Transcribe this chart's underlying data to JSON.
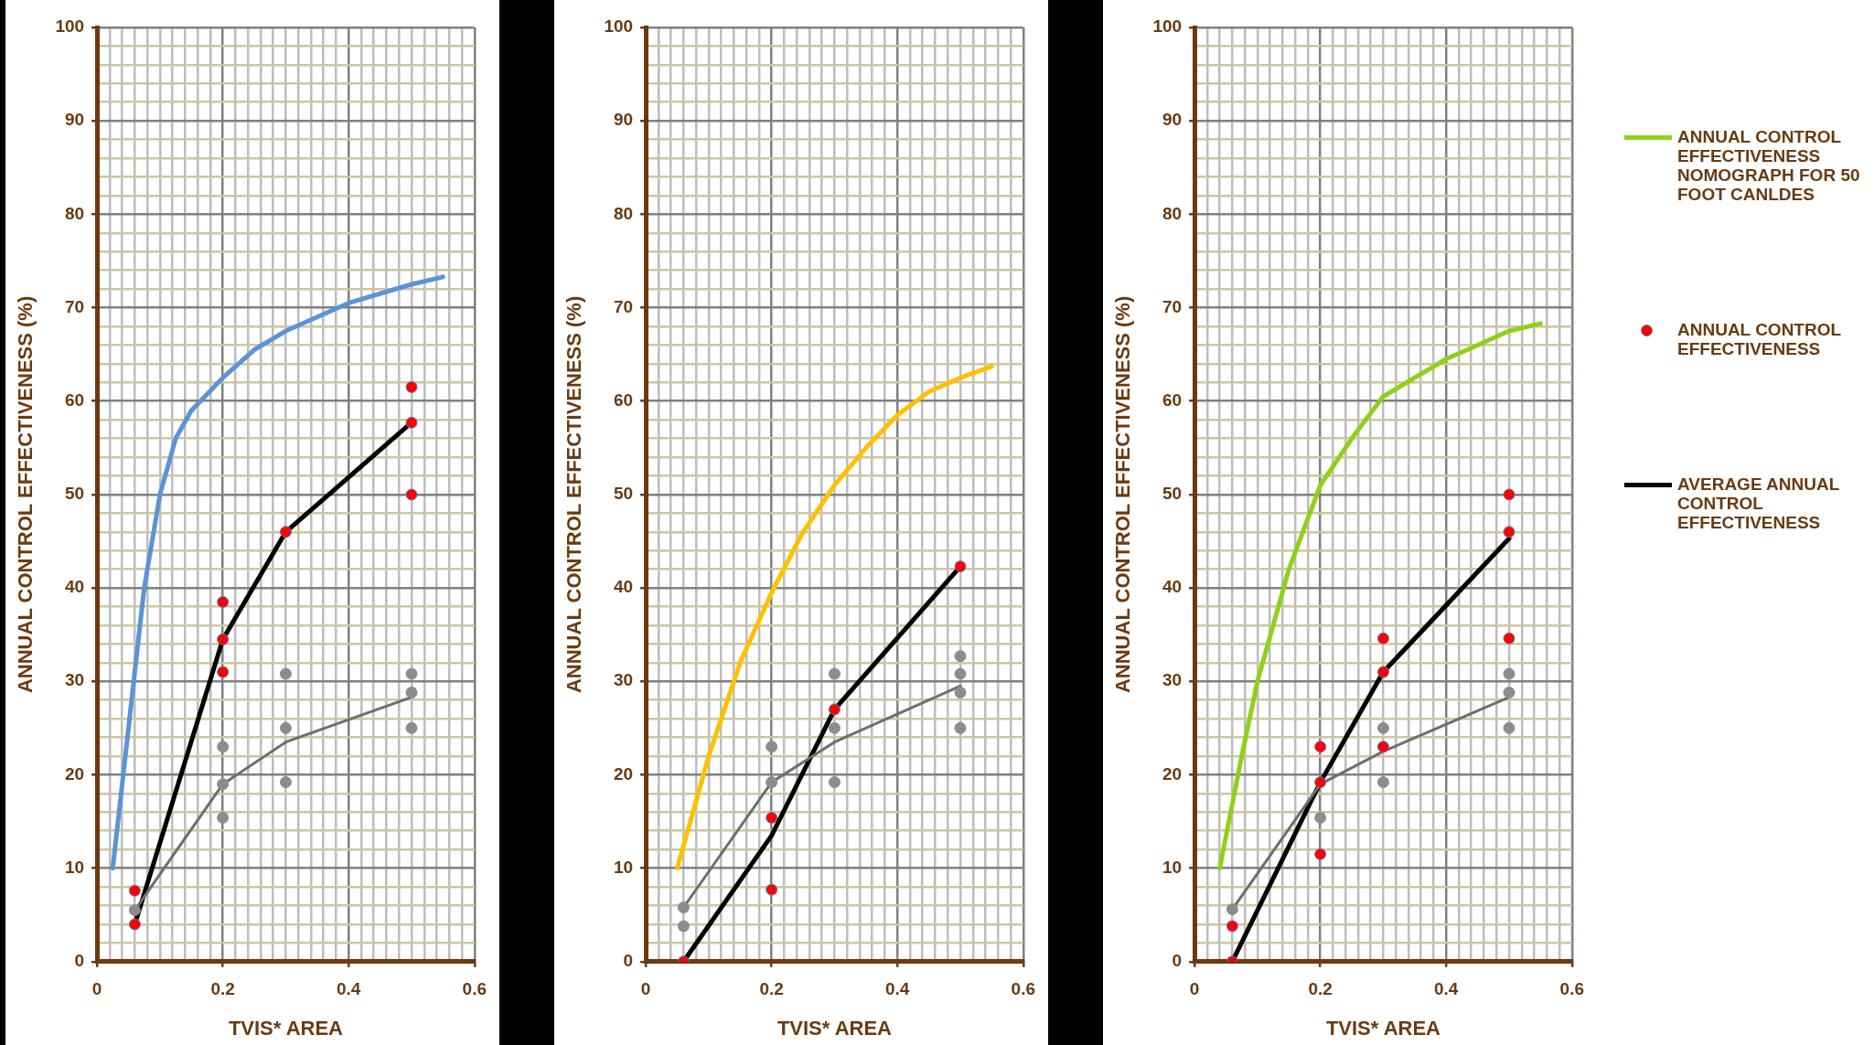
{
  "chart_data": [
    {
      "type": "line",
      "xlabel": "TVIS* AREA",
      "ylabel": "ANNUAL CONTROL EFFECTIVENESS (%)",
      "xlim": [
        0,
        0.6
      ],
      "ylim": [
        0,
        100
      ],
      "xticks": [
        0,
        {
          "value": 0.02,
          "label": null
        },
        {
          "value": 0.04,
          "label": null
        },
        {
          "value": 0.06,
          "label": null
        },
        {
          "value": 0.08,
          "label": null
        },
        {
          "value": 0.1,
          "label": null
        },
        {
          "value": 0.12,
          "label": null
        },
        {
          "value": 0.14,
          "label": null
        },
        {
          "value": 0.16,
          "label": null
        },
        {
          "value": 0.18,
          "label": null
        },
        0.2,
        {
          "value": 0.22,
          "label": null
        },
        {
          "value": 0.24,
          "label": null
        },
        {
          "value": 0.26,
          "label": null
        },
        {
          "value": 0.28,
          "label": null
        },
        {
          "value": 0.3,
          "label": null
        },
        {
          "value": 0.32,
          "label": null
        },
        {
          "value": 0.34,
          "label": null
        },
        {
          "value": 0.36,
          "label": null
        },
        {
          "value": 0.38,
          "label": null
        },
        0.4,
        {
          "value": 0.42,
          "label": null
        },
        {
          "value": 0.44,
          "label": null
        },
        {
          "value": 0.46,
          "label": null
        },
        {
          "value": 0.48,
          "label": null
        },
        {
          "value": 0.5,
          "label": null
        },
        {
          "value": 0.52,
          "label": null
        },
        {
          "value": 0.54,
          "label": null
        },
        {
          "value": 0.56,
          "label": null
        },
        {
          "value": 0.58,
          "label": null
        },
        0.6
      ],
      "yticks": [
        0,
        {
          "value": 2,
          "label": null
        },
        {
          "value": 4,
          "label": null
        },
        {
          "value": 6,
          "label": null
        },
        {
          "value": 8,
          "label": null
        },
        10,
        {
          "value": 12,
          "label": null
        },
        {
          "value": 14,
          "label": null
        },
        {
          "value": 16,
          "label": null
        },
        {
          "value": 18,
          "label": null
        },
        20,
        {
          "value": 22,
          "label": null
        },
        {
          "value": 24,
          "label": null
        },
        {
          "value": 26,
          "label": null
        },
        {
          "value": 28,
          "label": null
        },
        30,
        {
          "value": 32,
          "label": null
        },
        {
          "value": 34,
          "label": null
        },
        {
          "value": 36,
          "label": null
        },
        {
          "value": 38,
          "label": null
        },
        40,
        {
          "value": 42,
          "label": null
        },
        {
          "value": 44,
          "label": null
        },
        {
          "value": 46,
          "label": null
        },
        {
          "value": 48,
          "label": null
        },
        50,
        {
          "value": 52,
          "label": null
        },
        {
          "value": 54,
          "label": null
        },
        {
          "value": 56,
          "label": null
        },
        {
          "value": 58,
          "label": null
        },
        60,
        {
          "value": 62,
          "label": null
        },
        {
          "value": 64,
          "label": null
        },
        {
          "value": 66,
          "label": null
        },
        {
          "value": 68,
          "label": null
        },
        70,
        {
          "value": 72,
          "label": null
        },
        {
          "value": 74,
          "label": null
        },
        {
          "value": 76,
          "label": null
        },
        {
          "value": 78,
          "label": null
        },
        80,
        {
          "value": 82,
          "label": null
        },
        {
          "value": 84,
          "label": null
        },
        {
          "value": 86,
          "label": null
        },
        {
          "value": 88,
          "label": null
        },
        90,
        {
          "value": 92,
          "label": null
        },
        {
          "value": 94,
          "label": null
        },
        {
          "value": 96,
          "label": null
        },
        {
          "value": 98,
          "label": null
        },
        100
      ],
      "grid": true,
      "legend": false,
      "series": [
        {
          "type": "line",
          "color": "#5b93d6",
          "marker": "none",
          "x": [
            0.025,
            0.05,
            0.075,
            0.1,
            0.125,
            0.15,
            0.2,
            0.25,
            0.3,
            0.4,
            0.5,
            0.55
          ],
          "values": [
            10,
            25,
            40,
            50,
            56,
            59,
            62.5,
            65.5,
            67.5,
            70.5,
            72.5,
            73.3
          ]
        },
        {
          "type": "line",
          "color": "#6e6e6e",
          "marker": "none",
          "x": [
            0.06,
            0.2,
            0.3,
            0.5
          ],
          "values": [
            5.5,
            19,
            23.5,
            28.3
          ]
        },
        {
          "type": "scatter",
          "color": "#8c8c8c",
          "marker": "circle",
          "x": [
            0.06,
            0.2,
            0.2,
            0.2,
            0.3,
            0.3,
            0.3,
            0.5,
            0.5,
            0.5
          ],
          "values": [
            5.5,
            23,
            19,
            15.4,
            30.8,
            25,
            19.2,
            30.8,
            28.8,
            25
          ]
        },
        {
          "type": "line",
          "color": "#000000",
          "marker": "none",
          "x": [
            0.06,
            0.2,
            0.3,
            0.5
          ],
          "values": [
            4,
            34.5,
            46,
            57.7
          ]
        },
        {
          "type": "scatter",
          "color": "#ff0000",
          "marker": "circle",
          "x": [
            0.06,
            0.06,
            0.2,
            0.2,
            0.2,
            0.3,
            0.5,
            0.5,
            0.5
          ],
          "values": [
            7.6,
            4,
            38.5,
            34.5,
            31,
            46,
            61.5,
            57.7,
            50
          ]
        }
      ]
    },
    {
      "type": "line",
      "xlabel": "TVIS* AREA",
      "ylabel": "ANNUAL CONTROL EFFECTIVENESS (%)",
      "xlim": [
        0,
        0.6
      ],
      "ylim": [
        0,
        100
      ],
      "xticks": [
        0,
        {
          "value": 0.02,
          "label": null
        },
        {
          "value": 0.04,
          "label": null
        },
        {
          "value": 0.06,
          "label": null
        },
        {
          "value": 0.08,
          "label": null
        },
        {
          "value": 0.1,
          "label": null
        },
        {
          "value": 0.12,
          "label": null
        },
        {
          "value": 0.14,
          "label": null
        },
        {
          "value": 0.16,
          "label": null
        },
        {
          "value": 0.18,
          "label": null
        },
        0.2,
        {
          "value": 0.22,
          "label": null
        },
        {
          "value": 0.24,
          "label": null
        },
        {
          "value": 0.26,
          "label": null
        },
        {
          "value": 0.28,
          "label": null
        },
        {
          "value": 0.3,
          "label": null
        },
        {
          "value": 0.32,
          "label": null
        },
        {
          "value": 0.34,
          "label": null
        },
        {
          "value": 0.36,
          "label": null
        },
        {
          "value": 0.38,
          "label": null
        },
        0.4,
        {
          "value": 0.42,
          "label": null
        },
        {
          "value": 0.44,
          "label": null
        },
        {
          "value": 0.46,
          "label": null
        },
        {
          "value": 0.48,
          "label": null
        },
        {
          "value": 0.5,
          "label": null
        },
        {
          "value": 0.52,
          "label": null
        },
        {
          "value": 0.54,
          "label": null
        },
        {
          "value": 0.56,
          "label": null
        },
        {
          "value": 0.58,
          "label": null
        },
        0.6
      ],
      "yticks": [
        0,
        {
          "value": 2,
          "label": null
        },
        {
          "value": 4,
          "label": null
        },
        {
          "value": 6,
          "label": null
        },
        {
          "value": 8,
          "label": null
        },
        10,
        {
          "value": 12,
          "label": null
        },
        {
          "value": 14,
          "label": null
        },
        {
          "value": 16,
          "label": null
        },
        {
          "value": 18,
          "label": null
        },
        20,
        {
          "value": 22,
          "label": null
        },
        {
          "value": 24,
          "label": null
        },
        {
          "value": 26,
          "label": null
        },
        {
          "value": 28,
          "label": null
        },
        30,
        {
          "value": 32,
          "label": null
        },
        {
          "value": 34,
          "label": null
        },
        {
          "value": 36,
          "label": null
        },
        {
          "value": 38,
          "label": null
        },
        40,
        {
          "value": 42,
          "label": null
        },
        {
          "value": 44,
          "label": null
        },
        {
          "value": 46,
          "label": null
        },
        {
          "value": 48,
          "label": null
        },
        50,
        {
          "value": 52,
          "label": null
        },
        {
          "value": 54,
          "label": null
        },
        {
          "value": 56,
          "label": null
        },
        {
          "value": 58,
          "label": null
        },
        60,
        {
          "value": 62,
          "label": null
        },
        {
          "value": 64,
          "label": null
        },
        {
          "value": 66,
          "label": null
        },
        {
          "value": 68,
          "label": null
        },
        70,
        {
          "value": 72,
          "label": null
        },
        {
          "value": 74,
          "label": null
        },
        {
          "value": 76,
          "label": null
        },
        {
          "value": 78,
          "label": null
        },
        80,
        {
          "value": 82,
          "label": null
        },
        {
          "value": 84,
          "label": null
        },
        {
          "value": 86,
          "label": null
        },
        {
          "value": 88,
          "label": null
        },
        90,
        {
          "value": 92,
          "label": null
        },
        {
          "value": 94,
          "label": null
        },
        {
          "value": 96,
          "label": null
        },
        {
          "value": 98,
          "label": null
        },
        100
      ],
      "grid": true,
      "legend": false,
      "series": [
        {
          "type": "line",
          "color": "#ffc000",
          "marker": "none",
          "x": [
            0.05,
            0.1,
            0.15,
            0.2,
            0.25,
            0.3,
            0.35,
            0.4,
            0.45,
            0.5,
            0.55
          ],
          "values": [
            10,
            22,
            32,
            39.5,
            46,
            51,
            55,
            58.5,
            61,
            62.5,
            63.7
          ]
        },
        {
          "type": "line",
          "color": "#6e6e6e",
          "marker": "none",
          "x": [
            0.06,
            0.2,
            0.3,
            0.5
          ],
          "values": [
            5.8,
            19.2,
            23.5,
            29.5
          ]
        },
        {
          "type": "scatter",
          "color": "#8c8c8c",
          "marker": "circle",
          "x": [
            0.06,
            0.06,
            0.2,
            0.2,
            0.3,
            0.3,
            0.3,
            0.5,
            0.5,
            0.5,
            0.5
          ],
          "values": [
            5.8,
            3.8,
            23,
            19.2,
            30.8,
            25,
            19.2,
            32.7,
            30.8,
            28.8,
            25
          ]
        },
        {
          "type": "line",
          "color": "#000000",
          "marker": "none",
          "x": [
            0.06,
            0.2,
            0.3,
            0.5
          ],
          "values": [
            0,
            13.5,
            27,
            42.3
          ]
        },
        {
          "type": "scatter",
          "color": "#ff0000",
          "marker": "circle",
          "x": [
            0.06,
            0.2,
            0.2,
            0.3,
            0.5
          ],
          "values": [
            0,
            15.4,
            7.7,
            27,
            42.3
          ]
        }
      ]
    },
    {
      "type": "line",
      "xlabel": "TVIS* AREA",
      "ylabel": "ANNUAL CONTROL EFFECTIVENESS (%)",
      "xlim": [
        0,
        0.6
      ],
      "ylim": [
        0,
        100
      ],
      "xticks": [
        0,
        {
          "value": 0.02,
          "label": null
        },
        {
          "value": 0.04,
          "label": null
        },
        {
          "value": 0.06,
          "label": null
        },
        {
          "value": 0.08,
          "label": null
        },
        {
          "value": 0.1,
          "label": null
        },
        {
          "value": 0.12,
          "label": null
        },
        {
          "value": 0.14,
          "label": null
        },
        {
          "value": 0.16,
          "label": null
        },
        {
          "value": 0.18,
          "label": null
        },
        0.2,
        {
          "value": 0.22,
          "label": null
        },
        {
          "value": 0.24,
          "label": null
        },
        {
          "value": 0.26,
          "label": null
        },
        {
          "value": 0.28,
          "label": null
        },
        {
          "value": 0.3,
          "label": null
        },
        {
          "value": 0.32,
          "label": null
        },
        {
          "value": 0.34,
          "label": null
        },
        {
          "value": 0.36,
          "label": null
        },
        {
          "value": 0.38,
          "label": null
        },
        0.4,
        {
          "value": 0.42,
          "label": null
        },
        {
          "value": 0.44,
          "label": null
        },
        {
          "value": 0.46,
          "label": null
        },
        {
          "value": 0.48,
          "label": null
        },
        {
          "value": 0.5,
          "label": null
        },
        {
          "value": 0.52,
          "label": null
        },
        {
          "value": 0.54,
          "label": null
        },
        {
          "value": 0.56,
          "label": null
        },
        {
          "value": 0.58,
          "label": null
        },
        0.6
      ],
      "yticks": [
        0,
        {
          "value": 2,
          "label": null
        },
        {
          "value": 4,
          "label": null
        },
        {
          "value": 6,
          "label": null
        },
        {
          "value": 8,
          "label": null
        },
        10,
        {
          "value": 12,
          "label": null
        },
        {
          "value": 14,
          "label": null
        },
        {
          "value": 16,
          "label": null
        },
        {
          "value": 18,
          "label": null
        },
        20,
        {
          "value": 22,
          "label": null
        },
        {
          "value": 24,
          "label": null
        },
        {
          "value": 26,
          "label": null
        },
        {
          "value": 28,
          "label": null
        },
        30,
        {
          "value": 32,
          "label": null
        },
        {
          "value": 34,
          "label": null
        },
        {
          "value": 36,
          "label": null
        },
        {
          "value": 38,
          "label": null
        },
        40,
        {
          "value": 42,
          "label": null
        },
        {
          "value": 44,
          "label": null
        },
        {
          "value": 46,
          "label": null
        },
        {
          "value": 48,
          "label": null
        },
        50,
        {
          "value": 52,
          "label": null
        },
        {
          "value": 54,
          "label": null
        },
        {
          "value": 56,
          "label": null
        },
        {
          "value": 58,
          "label": null
        },
        60,
        {
          "value": 62,
          "label": null
        },
        {
          "value": 64,
          "label": null
        },
        {
          "value": 66,
          "label": null
        },
        {
          "value": 68,
          "label": null
        },
        70,
        {
          "value": 72,
          "label": null
        },
        {
          "value": 74,
          "label": null
        },
        {
          "value": 76,
          "label": null
        },
        {
          "value": 78,
          "label": null
        },
        80,
        {
          "value": 82,
          "label": null
        },
        {
          "value": 84,
          "label": null
        },
        {
          "value": 86,
          "label": null
        },
        {
          "value": 88,
          "label": null
        },
        90,
        {
          "value": 92,
          "label": null
        },
        {
          "value": 94,
          "label": null
        },
        {
          "value": 96,
          "label": null
        },
        {
          "value": 98,
          "label": null
        },
        100
      ],
      "grid": true,
      "legend": "right",
      "series": [
        {
          "type": "line",
          "name": "ANNUAL CONTROL EFFECTIVENESS NOMOGRAPH FOR 50 FOOT CANLDES",
          "color": "#8ed11a",
          "marker": "none",
          "x": [
            0.04,
            0.075,
            0.1,
            0.15,
            0.2,
            0.25,
            0.3,
            0.35,
            0.4,
            0.45,
            0.5,
            0.55
          ],
          "values": [
            10,
            22,
            30,
            42,
            51,
            56,
            60.5,
            62.5,
            64.5,
            66,
            67.5,
            68.3
          ]
        },
        {
          "type": "line",
          "color": "#6e6e6e",
          "marker": "none",
          "x": [
            0.06,
            0.2,
            0.3,
            0.5
          ],
          "values": [
            5.6,
            19,
            22.5,
            28.3
          ]
        },
        {
          "type": "scatter",
          "color": "#8c8c8c",
          "marker": "circle",
          "x": [
            0.06,
            0.2,
            0.3,
            0.3,
            0.5,
            0.5,
            0.5
          ],
          "values": [
            5.6,
            15.4,
            25,
            19.2,
            30.8,
            28.8,
            25
          ]
        },
        {
          "type": "scatter",
          "name": "ANNUAL CONTROL EFFECTIVENESS",
          "color": "#ff0000",
          "marker": "circle",
          "x": [
            0.06,
            0.06,
            0.2,
            0.2,
            0.2,
            0.3,
            0.3,
            0.3,
            0.5,
            0.5,
            0.5
          ],
          "values": [
            3.8,
            0,
            23,
            19.2,
            11.5,
            34.6,
            31,
            23,
            50,
            46,
            34.6
          ]
        },
        {
          "type": "line",
          "name": "AVERAGE ANNUAL CONTROL EFFECTIVENESS",
          "color": "#000000",
          "marker": "none",
          "x": [
            0.06,
            0.2,
            0.3,
            0.5
          ],
          "values": [
            0,
            19.2,
            31,
            45.3
          ]
        }
      ]
    }
  ]
}
